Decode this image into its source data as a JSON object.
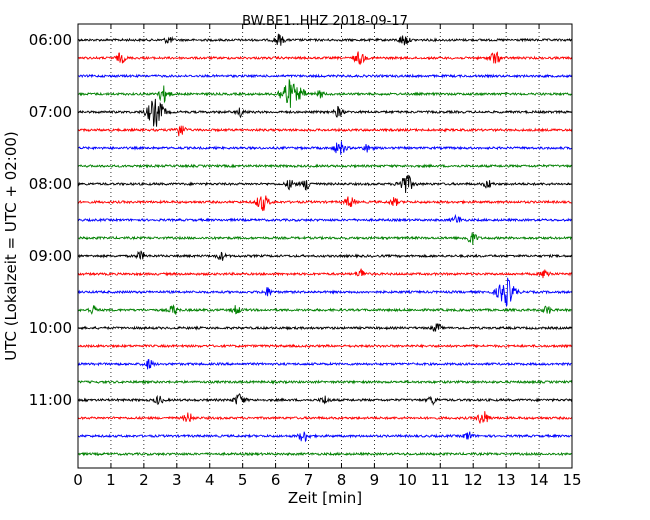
{
  "chart_data": {
    "type": "line",
    "title": "BW.BE1..HHZ 2018-09-17",
    "xlabel": "Zeit  [min]",
    "ylabel": "UTC (Lokalzeit = UTC + 02:00)",
    "xlim": [
      0,
      15
    ],
    "x_ticks": [
      "0",
      "1",
      "2",
      "3",
      "4",
      "5",
      "6",
      "7",
      "8",
      "9",
      "10",
      "11",
      "12",
      "13",
      "14",
      "15"
    ],
    "y_tick_labels": [
      "06:00",
      "07:00",
      "08:00",
      "09:00",
      "10:00",
      "11:00"
    ],
    "y_tick_rows": [
      0,
      4,
      8,
      12,
      16,
      20
    ],
    "grid": "vertical dotted",
    "colors": [
      "#000000",
      "#ff0000",
      "#0000ff",
      "#008000"
    ],
    "traces": [
      {
        "start": "06:00",
        "events": [
          [
            2.75,
            0.25
          ],
          [
            6.1,
            0.4
          ],
          [
            9.9,
            0.4
          ]
        ]
      },
      {
        "start": "06:15",
        "events": [
          [
            1.3,
            0.35
          ],
          [
            8.55,
            0.45
          ],
          [
            12.65,
            0.45
          ]
        ]
      },
      {
        "start": "06:30",
        "events": []
      },
      {
        "start": "06:45",
        "events": [
          [
            2.6,
            0.55
          ],
          [
            6.4,
            1.0
          ],
          [
            6.8,
            0.3
          ],
          [
            7.35,
            0.25
          ]
        ]
      },
      {
        "start": "07:00",
        "events": [
          [
            2.35,
            1.0
          ],
          [
            4.95,
            0.3
          ],
          [
            7.9,
            0.35
          ]
        ]
      },
      {
        "start": "07:15",
        "events": [
          [
            3.1,
            0.45
          ]
        ]
      },
      {
        "start": "07:30",
        "events": [
          [
            7.95,
            0.5
          ],
          [
            8.8,
            0.3
          ]
        ]
      },
      {
        "start": "07:45",
        "events": []
      },
      {
        "start": "08:00",
        "events": [
          [
            6.45,
            0.35
          ],
          [
            6.95,
            0.4
          ],
          [
            9.95,
            0.7
          ],
          [
            12.45,
            0.3
          ]
        ]
      },
      {
        "start": "08:15",
        "events": [
          [
            5.6,
            0.6
          ],
          [
            8.25,
            0.4
          ],
          [
            9.6,
            0.3
          ]
        ]
      },
      {
        "start": "08:30",
        "events": [
          [
            11.5,
            0.3
          ]
        ]
      },
      {
        "start": "08:45",
        "events": [
          [
            11.95,
            0.45
          ]
        ]
      },
      {
        "start": "09:00",
        "events": [
          [
            1.9,
            0.3
          ],
          [
            4.35,
            0.3
          ]
        ]
      },
      {
        "start": "09:15",
        "events": [
          [
            8.6,
            0.35
          ],
          [
            14.2,
            0.35
          ]
        ]
      },
      {
        "start": "09:30",
        "events": [
          [
            5.75,
            0.3
          ],
          [
            13.0,
            1.0
          ]
        ]
      },
      {
        "start": "09:45",
        "events": [
          [
            0.45,
            0.3
          ],
          [
            2.9,
            0.35
          ],
          [
            4.8,
            0.3
          ],
          [
            14.25,
            0.3
          ]
        ]
      },
      {
        "start": "10:00",
        "events": [
          [
            10.9,
            0.3
          ]
        ]
      },
      {
        "start": "10:15",
        "events": []
      },
      {
        "start": "10:30",
        "events": [
          [
            2.15,
            0.35
          ]
        ]
      },
      {
        "start": "10:45",
        "events": []
      },
      {
        "start": "11:00",
        "events": [
          [
            2.45,
            0.3
          ],
          [
            4.9,
            0.45
          ],
          [
            7.5,
            0.3
          ],
          [
            10.75,
            0.3
          ]
        ]
      },
      {
        "start": "11:15",
        "events": [
          [
            3.35,
            0.35
          ],
          [
            12.3,
            0.5
          ]
        ]
      },
      {
        "start": "11:30",
        "events": [
          [
            6.85,
            0.4
          ],
          [
            11.85,
            0.3
          ]
        ]
      },
      {
        "start": "11:45",
        "events": []
      }
    ]
  }
}
